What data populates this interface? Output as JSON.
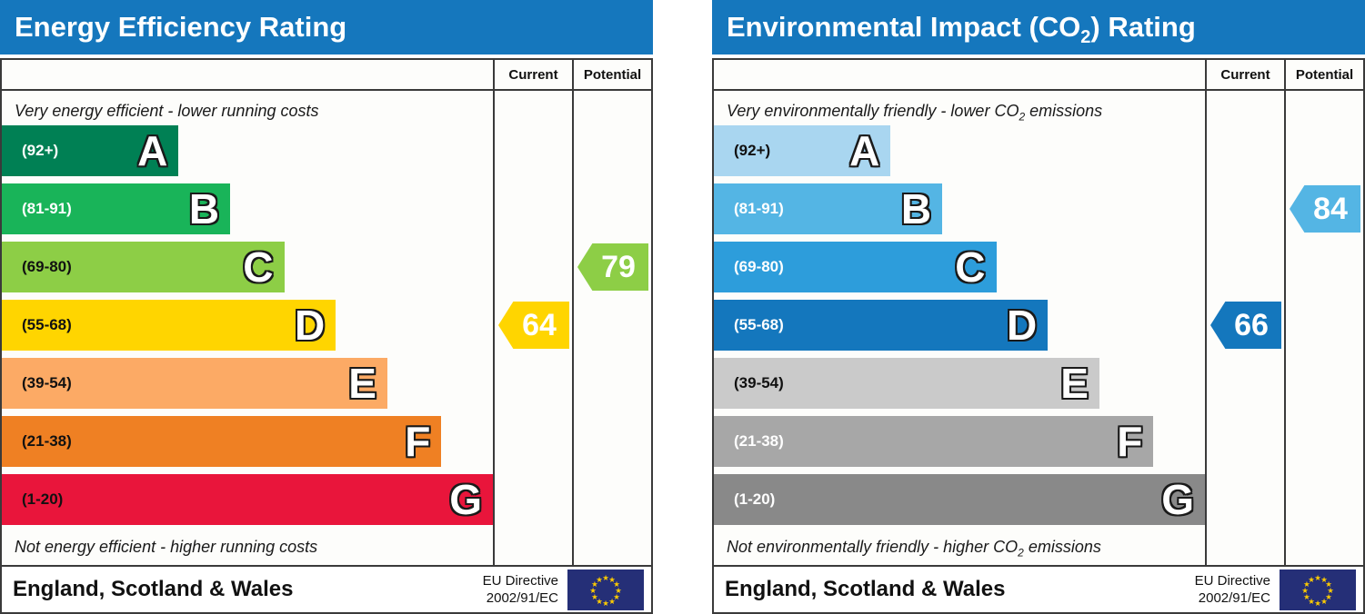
{
  "theme": {
    "header_bg": "#1577bd",
    "header_text": "#ffffff",
    "table_border": "#3a3a3a",
    "eu_flag_blue": "#252f77",
    "eu_flag_star": "#ffcc00"
  },
  "chart_data": [
    {
      "type": "bar",
      "chart_kind": "EPC rating scale",
      "title_parts": {
        "pre": "Energy Efficiency Rating",
        "sub": "",
        "post": ""
      },
      "column_headers": [
        "Current",
        "Potential"
      ],
      "top_caption_parts": {
        "pre": "Very energy efficient - lower running costs",
        "sub": "",
        "post": ""
      },
      "bottom_caption_parts": {
        "pre": "Not energy efficient - higher running costs",
        "sub": "",
        "post": ""
      },
      "categories": [
        "A",
        "B",
        "C",
        "D",
        "E",
        "F",
        "G"
      ],
      "bands": [
        {
          "letter": "A",
          "range_label": "(92+)",
          "color": "#008054",
          "range_text_color": "#ffffff",
          "width_pct": 36
        },
        {
          "letter": "B",
          "range_label": "(81-91)",
          "color": "#19b459",
          "range_text_color": "#ffffff",
          "width_pct": 46.5
        },
        {
          "letter": "C",
          "range_label": "(69-80)",
          "color": "#8dce46",
          "range_text_color": "#111111",
          "width_pct": 57.5
        },
        {
          "letter": "D",
          "range_label": "(55-68)",
          "color": "#ffd500",
          "range_text_color": "#111111",
          "width_pct": 68
        },
        {
          "letter": "E",
          "range_label": "(39-54)",
          "color": "#fcaa65",
          "range_text_color": "#111111",
          "width_pct": 78.5
        },
        {
          "letter": "F",
          "range_label": "(21-38)",
          "color": "#ef8023",
          "range_text_color": "#111111",
          "width_pct": 89.5
        },
        {
          "letter": "G",
          "range_label": "(1-20)",
          "color": "#e9153b",
          "range_text_color": "#111111",
          "width_pct": 100
        }
      ],
      "current": {
        "value": 64,
        "band": "D",
        "band_index": 3,
        "color": "#ffd500"
      },
      "potential": {
        "value": 79,
        "band": "C",
        "band_index": 2,
        "color": "#8dce46"
      },
      "footer_region": "England, Scotland & Wales",
      "directive_lines": [
        "EU Directive",
        "2002/91/EC"
      ]
    },
    {
      "type": "bar",
      "chart_kind": "EPC rating scale",
      "title_parts": {
        "pre": "Environmental Impact (CO",
        "sub": "2",
        "post": ") Rating"
      },
      "column_headers": [
        "Current",
        "Potential"
      ],
      "top_caption_parts": {
        "pre": "Very environmentally friendly - lower CO",
        "sub": "2",
        "post": " emissions"
      },
      "bottom_caption_parts": {
        "pre": "Not environmentally friendly - higher CO",
        "sub": "2",
        "post": " emissions"
      },
      "categories": [
        "A",
        "B",
        "C",
        "D",
        "E",
        "F",
        "G"
      ],
      "bands": [
        {
          "letter": "A",
          "range_label": "(92+)",
          "color": "#a9d6f0",
          "range_text_color": "#111111",
          "width_pct": 36
        },
        {
          "letter": "B",
          "range_label": "(81-91)",
          "color": "#54b5e4",
          "range_text_color": "#ffffff",
          "width_pct": 46.5
        },
        {
          "letter": "C",
          "range_label": "(69-80)",
          "color": "#2d9ddb",
          "range_text_color": "#ffffff",
          "width_pct": 57.5
        },
        {
          "letter": "D",
          "range_label": "(55-68)",
          "color": "#1477bd",
          "range_text_color": "#ffffff",
          "width_pct": 68
        },
        {
          "letter": "E",
          "range_label": "(39-54)",
          "color": "#cacaca",
          "range_text_color": "#111111",
          "width_pct": 78.5
        },
        {
          "letter": "F",
          "range_label": "(21-38)",
          "color": "#a7a7a7",
          "range_text_color": "#ffffff",
          "width_pct": 89.5
        },
        {
          "letter": "G",
          "range_label": "(1-20)",
          "color": "#898989",
          "range_text_color": "#ffffff",
          "width_pct": 100
        }
      ],
      "current": {
        "value": 66,
        "band": "D",
        "band_index": 3,
        "color": "#1477bd"
      },
      "potential": {
        "value": 84,
        "band": "B",
        "band_index": 1,
        "color": "#54b5e4"
      },
      "footer_region": "England, Scotland & Wales",
      "directive_lines": [
        "EU Directive",
        "2002/91/EC"
      ]
    }
  ]
}
